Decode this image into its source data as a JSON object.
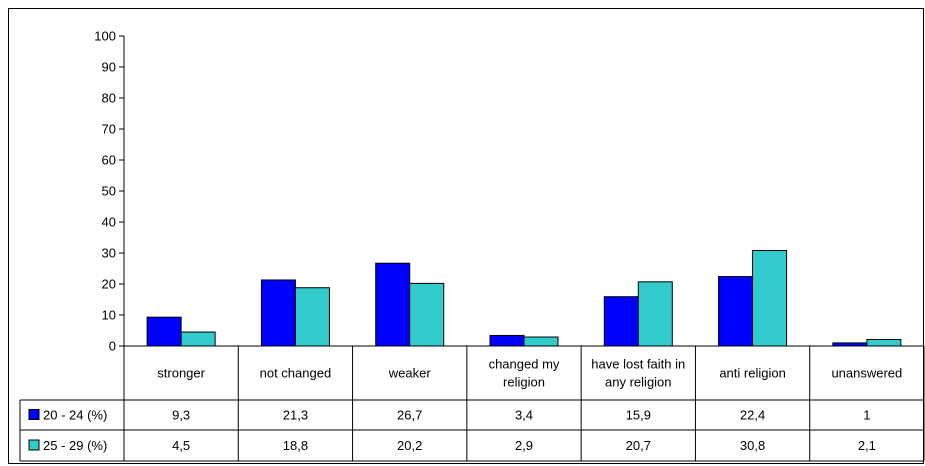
{
  "chart_data": {
    "type": "bar",
    "categories": [
      [
        "stronger"
      ],
      [
        "not changed"
      ],
      [
        "weaker"
      ],
      [
        "changed my",
        "religion"
      ],
      [
        "have lost faith in",
        "any religion"
      ],
      [
        "anti religion"
      ],
      [
        "unanswered"
      ]
    ],
    "series": [
      {
        "name": "20 - 24 (%)",
        "color": "#0000ff",
        "values": [
          9.3,
          21.3,
          26.7,
          3.4,
          15.9,
          22.4,
          1
        ],
        "labels": [
          "9,3",
          "21,3",
          "26,7",
          "3,4",
          "15,9",
          "22,4",
          "1"
        ]
      },
      {
        "name": "25 - 29 (%)",
        "color": "#33cccc",
        "values": [
          4.5,
          18.8,
          20.2,
          2.9,
          20.7,
          30.8,
          2.1
        ],
        "labels": [
          "4,5",
          "18,8",
          "20,2",
          "2,9",
          "20,7",
          "30,8",
          "2,1"
        ]
      }
    ],
    "ylim": [
      0,
      100
    ],
    "yticks": [
      0,
      10,
      20,
      30,
      40,
      50,
      60,
      70,
      80,
      90,
      100
    ],
    "grid": false,
    "legend": "data-table-left"
  }
}
